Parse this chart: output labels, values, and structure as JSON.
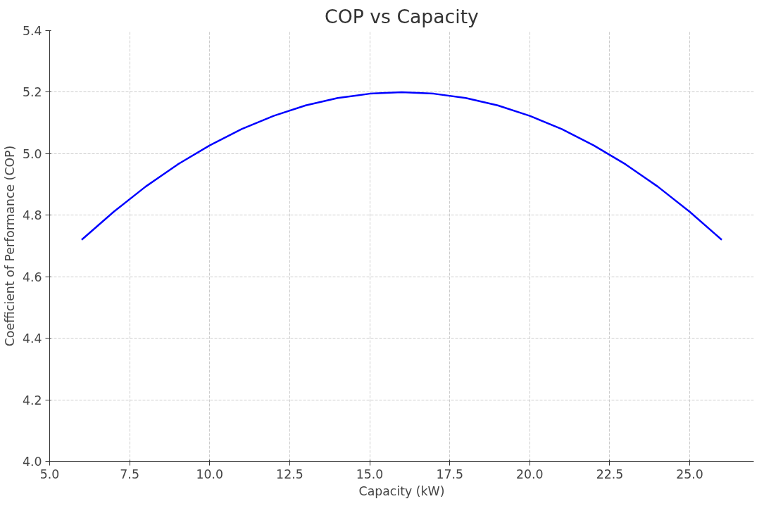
{
  "chart_data": {
    "type": "line",
    "title": "COP vs Capacity",
    "xlabel": "Capacity (kW)",
    "ylabel": "Coefficient of Performance (COP)",
    "x": [
      6,
      7,
      8,
      9,
      10,
      11,
      12,
      13,
      14,
      15,
      16,
      17,
      18,
      19,
      20,
      21,
      22,
      23,
      24,
      25,
      26
    ],
    "series": [
      {
        "color": "#0000ff",
        "values": [
          4.72,
          4.811,
          4.893,
          4.965,
          5.027,
          5.08,
          5.123,
          5.157,
          5.181,
          5.195,
          5.2,
          5.195,
          5.181,
          5.157,
          5.123,
          5.08,
          5.027,
          4.965,
          4.893,
          4.811,
          4.72
        ]
      }
    ],
    "xlim": [
      5,
      27
    ],
    "ylim": [
      4.0,
      5.4
    ],
    "xticks": [
      {
        "value": 5,
        "label": "5.0"
      },
      {
        "value": 7.5,
        "label": "7.5"
      },
      {
        "value": 10,
        "label": "10.0"
      },
      {
        "value": 12.5,
        "label": "12.5"
      },
      {
        "value": 15,
        "label": "15.0"
      },
      {
        "value": 17.5,
        "label": "17.5"
      },
      {
        "value": 20,
        "label": "20.0"
      },
      {
        "value": 22.5,
        "label": "22.5"
      },
      {
        "value": 25,
        "label": "25.0"
      }
    ],
    "yticks": [
      {
        "value": 4.0,
        "label": "4.0"
      },
      {
        "value": 4.2,
        "label": "4.2"
      },
      {
        "value": 4.4,
        "label": "4.4"
      },
      {
        "value": 4.6,
        "label": "4.6"
      },
      {
        "value": 4.8,
        "label": "4.8"
      },
      {
        "value": 5.0,
        "label": "5.0"
      },
      {
        "value": 5.2,
        "label": "5.2"
      },
      {
        "value": 5.4,
        "label": "5.4"
      }
    ],
    "grid": true,
    "marker": "none",
    "line_style": "solid"
  }
}
